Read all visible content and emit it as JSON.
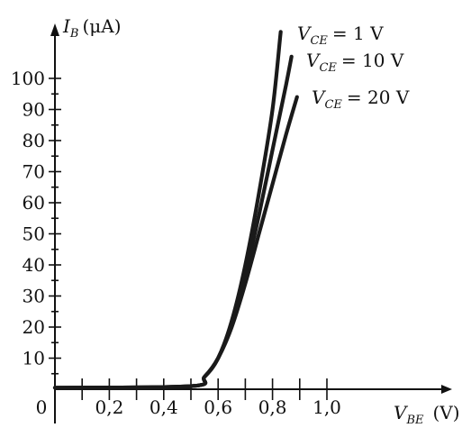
{
  "chart_data": {
    "type": "line",
    "title": "",
    "xlabel": {
      "symbol": "V",
      "subscript": "BE",
      "unit": "(V)"
    },
    "ylabel": {
      "symbol": "I",
      "subscript": "B",
      "unit": "(μA)"
    },
    "xlim": [
      0,
      1.1
    ],
    "ylim": [
      0,
      105
    ],
    "origin_label": "0",
    "x_ticks": [
      {
        "value": 0.2,
        "label": "0,2"
      },
      {
        "value": 0.4,
        "label": "0,4"
      },
      {
        "value": 0.6,
        "label": "0,6"
      },
      {
        "value": 0.8,
        "label": "0,8"
      },
      {
        "value": 1.0,
        "label": "1,0"
      }
    ],
    "x_minor_ticks": [
      0.1,
      0.3,
      0.5,
      0.7,
      0.9
    ],
    "y_ticks": [
      {
        "value": 10,
        "label": "10"
      },
      {
        "value": 20,
        "label": "20"
      },
      {
        "value": 30,
        "label": "30"
      },
      {
        "value": 40,
        "label": "40"
      },
      {
        "value": 50,
        "label": "50"
      },
      {
        "value": 60,
        "label": "60"
      },
      {
        "value": 70,
        "label": "70"
      },
      {
        "value": 80,
        "label": "80"
      },
      {
        "value": 90,
        "label": "90"
      },
      {
        "value": 100,
        "label": "100"
      }
    ],
    "y_minor_ticks": [
      5,
      15,
      25,
      35,
      45,
      55,
      65,
      75,
      85,
      95
    ],
    "grid": false,
    "series": [
      {
        "label": {
          "symbol": "V",
          "subscript": "CE",
          "value": "= 1 V"
        },
        "x": [
          0,
          0.5,
          0.55,
          0.6,
          0.65,
          0.7,
          0.75,
          0.8,
          0.83
        ],
        "y": [
          0.5,
          1,
          4,
          10,
          22,
          40,
          63,
          90,
          115
        ]
      },
      {
        "label": {
          "symbol": "V",
          "subscript": "CE",
          "value": "= 10 V"
        },
        "x": [
          0,
          0.5,
          0.55,
          0.6,
          0.65,
          0.7,
          0.75,
          0.8,
          0.85,
          0.87
        ],
        "y": [
          0.5,
          1,
          4,
          10,
          21,
          37,
          56,
          77,
          98,
          107
        ]
      },
      {
        "label": {
          "symbol": "V",
          "subscript": "CE",
          "value": "= 20 V"
        },
        "x": [
          0,
          0.5,
          0.55,
          0.6,
          0.65,
          0.7,
          0.75,
          0.8,
          0.85,
          0.89
        ],
        "y": [
          0.5,
          1,
          4,
          10,
          20,
          34,
          50,
          66,
          82,
          94
        ]
      }
    ]
  }
}
